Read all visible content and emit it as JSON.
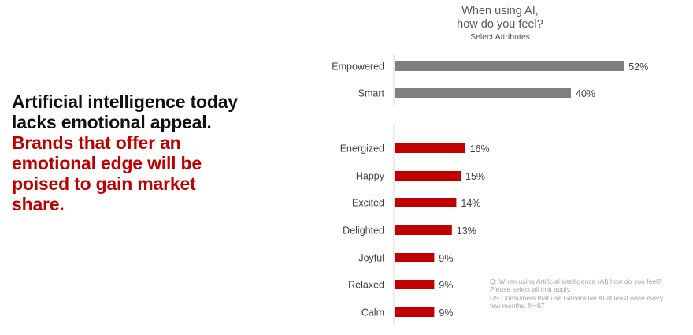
{
  "headline": {
    "lines_dark": [
      "Artificial intelligence today",
      "lacks emotional appeal."
    ],
    "lines_red": [
      "Brands that offer an",
      "emotional edge will be",
      "poised to gain market",
      "share."
    ]
  },
  "chart_title": {
    "line1": "When using AI,",
    "line2": "how do you feel?",
    "subtitle": "Select Attributes"
  },
  "colors": {
    "group1_bar": "#7f7f7f",
    "group2_bar": "#c00000",
    "axis_line": "#d9d9d9",
    "label_text": "#404040"
  },
  "chart_data": {
    "type": "bar",
    "orientation": "horizontal",
    "categories": [
      "Empowered",
      "Smart",
      "Energized",
      "Happy",
      "Excited",
      "Delighted",
      "Joyful",
      "Relaxed",
      "Calm"
    ],
    "values": [
      52,
      40,
      16,
      15,
      14,
      13,
      9,
      9,
      9
    ],
    "data_labels": [
      "52%",
      "40%",
      "16%",
      "15%",
      "14%",
      "13%",
      "9%",
      "9%",
      "9%"
    ],
    "groups": [
      {
        "categories": [
          "Empowered",
          "Smart"
        ],
        "color": "#7f7f7f"
      },
      {
        "categories": [
          "Energized",
          "Happy",
          "Excited",
          "Delighted",
          "Joyful",
          "Relaxed",
          "Calm"
        ],
        "color": "#c00000"
      }
    ],
    "unit": "%",
    "grid": false,
    "legend": "none"
  },
  "footnote": {
    "lines": [
      "Q: When using Artificial intelligence (AI) how do you feel?",
      "Please select all that apply.",
      "US Consumers that use Generative AI at least once every",
      "few months, N=97"
    ]
  }
}
